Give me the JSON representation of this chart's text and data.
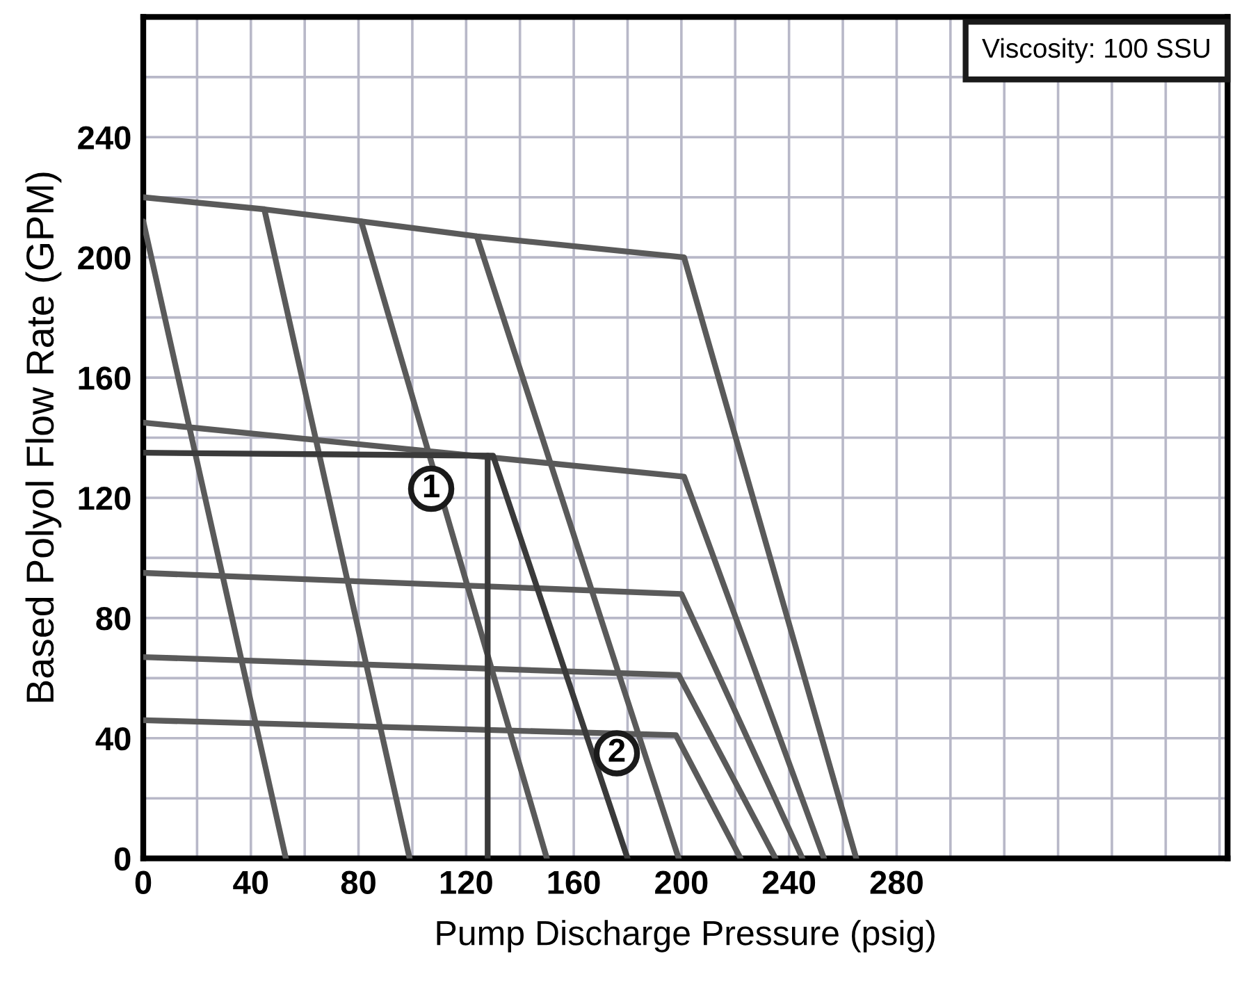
{
  "chart_data": {
    "type": "line",
    "xlabel": "Pump Discharge Pressure (psig)",
    "ylabel": "Based Polyol Flow Rate (GPM)",
    "xlim": [
      0,
      403
    ],
    "ylim": [
      0,
      280
    ],
    "xticks": [
      0,
      {
        "value": 20,
        "label": null
      },
      40,
      {
        "value": 60,
        "label": null
      },
      80,
      {
        "value": 100,
        "label": null
      },
      120,
      {
        "value": 140,
        "label": null
      },
      160,
      {
        "value": 180,
        "label": null
      },
      200,
      {
        "value": 220,
        "label": null
      },
      240,
      {
        "value": 260,
        "label": null
      },
      280,
      {
        "value": 300,
        "label": null
      },
      {
        "value": 320,
        "label": null
      },
      {
        "value": 340,
        "label": null
      },
      {
        "value": 360,
        "label": null
      },
      {
        "value": 380,
        "label": null
      },
      {
        "value": 400,
        "label": null
      }
    ],
    "yticks": [
      0,
      {
        "value": 20,
        "label": null
      },
      40,
      {
        "value": 60,
        "label": null
      },
      80,
      {
        "value": 100,
        "label": null
      },
      120,
      {
        "value": 140,
        "label": null
      },
      160,
      {
        "value": 180,
        "label": null
      },
      200,
      {
        "value": 220,
        "label": null
      },
      240,
      {
        "value": 260,
        "label": null
      }
    ],
    "grid": true,
    "legend": false,
    "marker": "none",
    "line_style": "solid",
    "series": [
      {
        "color": "#5a5a5a",
        "x": [
          0,
          45,
          81,
          124,
          201,
          265
        ],
        "values": [
          220,
          216,
          212,
          207,
          200,
          0
        ]
      },
      {
        "color": "#5a5a5a",
        "x": [
          0,
          201,
          253
        ],
        "values": [
          145,
          127,
          0
        ]
      },
      {
        "color": "#5a5a5a",
        "x": [
          0,
          200,
          245
        ],
        "values": [
          95,
          88,
          0
        ]
      },
      {
        "color": "#5a5a5a",
        "x": [
          0,
          199,
          235
        ],
        "values": [
          67,
          61,
          0
        ]
      },
      {
        "color": "#5a5a5a",
        "x": [
          0,
          198,
          222
        ],
        "values": [
          46,
          41,
          0
        ]
      },
      {
        "color": "#5a5a5a",
        "x": [
          0,
          53
        ],
        "values": [
          212,
          0
        ]
      },
      {
        "color": "#5a5a5a",
        "x": [
          45,
          99
        ],
        "values": [
          216,
          0
        ]
      },
      {
        "color": "#5a5a5a",
        "x": [
          81,
          150
        ],
        "values": [
          212,
          0
        ]
      },
      {
        "color": "#5a5a5a",
        "x": [
          124,
          199
        ],
        "values": [
          207,
          0
        ]
      },
      {
        "color": "#3a3a3a",
        "x": [
          0,
          130,
          180
        ],
        "values": [
          135,
          134,
          0
        ]
      },
      {
        "color": "#3a3a3a",
        "x": [
          128,
          128
        ],
        "values": [
          134,
          0
        ]
      }
    ],
    "annotations": [
      {
        "text": "1",
        "x": 107,
        "y": 123
      },
      {
        "text": "2",
        "x": 176,
        "y": 35
      },
      "Viscosity: 100 SSU"
    ]
  }
}
